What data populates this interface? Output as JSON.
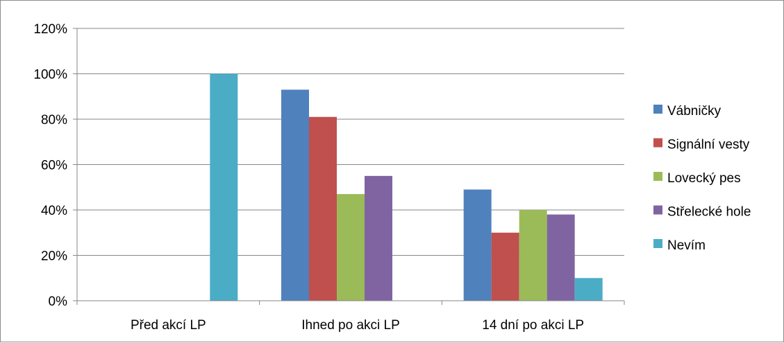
{
  "chart_data": {
    "type": "bar",
    "categories": [
      "Před akcí LP",
      "Ihned po akci LP",
      "14 dní po akci LP"
    ],
    "series": [
      {
        "name": "Vábničky",
        "color": "#4f81bd",
        "values": [
          0,
          93,
          49
        ]
      },
      {
        "name": "Signální vesty",
        "color": "#c0504d",
        "values": [
          0,
          81,
          30
        ]
      },
      {
        "name": "Lovecký pes",
        "color": "#9bbb59",
        "values": [
          0,
          47,
          40
        ]
      },
      {
        "name": "Střelecké hole",
        "color": "#8064a2",
        "values": [
          0,
          55,
          38
        ]
      },
      {
        "name": "Nevím",
        "color": "#4bacc6",
        "values": [
          100,
          0,
          10
        ]
      }
    ],
    "ylim": [
      0,
      120
    ],
    "yticks": [
      "0%",
      "20%",
      "40%",
      "60%",
      "80%",
      "100%",
      "120%"
    ],
    "grid": true,
    "legend": "right",
    "gridline_color": "#868686"
  }
}
